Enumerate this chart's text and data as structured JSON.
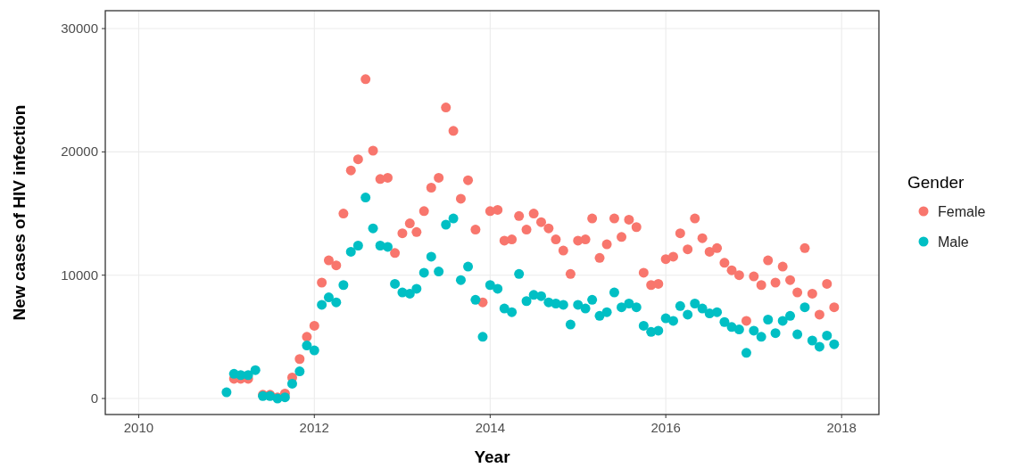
{
  "chart_data": {
    "type": "scatter",
    "xlabel": "Year",
    "ylabel": "New cases of HIV infection",
    "legend_title": "Gender",
    "x": [
      "2011-01",
      "2011-02",
      "2011-03",
      "2011-04",
      "2011-05",
      "2011-06",
      "2011-07",
      "2011-08",
      "2011-09",
      "2011-10",
      "2011-11",
      "2011-12",
      "2012-01",
      "2012-02",
      "2012-03",
      "2012-04",
      "2012-05",
      "2012-06",
      "2012-07",
      "2012-08",
      "2012-09",
      "2012-10",
      "2012-11",
      "2012-12",
      "2013-01",
      "2013-02",
      "2013-03",
      "2013-04",
      "2013-05",
      "2013-06",
      "2013-07",
      "2013-08",
      "2013-09",
      "2013-10",
      "2013-11",
      "2013-12",
      "2014-01",
      "2014-02",
      "2014-03",
      "2014-04",
      "2014-05",
      "2014-06",
      "2014-07",
      "2014-08",
      "2014-09",
      "2014-10",
      "2014-11",
      "2014-12",
      "2015-01",
      "2015-02",
      "2015-03",
      "2015-04",
      "2015-05",
      "2015-06",
      "2015-07",
      "2015-08",
      "2015-09",
      "2015-10",
      "2015-11",
      "2015-12",
      "2016-01",
      "2016-02",
      "2016-03",
      "2016-04",
      "2016-05",
      "2016-06",
      "2016-07",
      "2016-08",
      "2016-09",
      "2016-10",
      "2016-11",
      "2016-12",
      "2017-01",
      "2017-02",
      "2017-03",
      "2017-04",
      "2017-05",
      "2017-06",
      "2017-07",
      "2017-08",
      "2017-09",
      "2017-10",
      "2017-11",
      "2017-12"
    ],
    "series": [
      {
        "name": "Female",
        "color": "#f8766d",
        "values": [
          null,
          1600,
          1600,
          1600,
          null,
          300,
          300,
          100,
          400,
          1700,
          3200,
          5000,
          5900,
          9400,
          11200,
          10800,
          15000,
          18500,
          19400,
          25900,
          20100,
          17800,
          17900,
          11800,
          13400,
          14200,
          13500,
          15200,
          17100,
          17900,
          23600,
          21700,
          16200,
          17700,
          13700,
          7800,
          15200,
          15300,
          12800,
          12900,
          14800,
          13700,
          15000,
          14300,
          13800,
          12900,
          12000,
          10100,
          12800,
          12900,
          14600,
          11400,
          12500,
          14600,
          13100,
          14500,
          13900,
          10200,
          9200,
          9300,
          11300,
          11500,
          13400,
          12100,
          14600,
          13000,
          11900,
          12200,
          11000,
          10400,
          10000,
          6300,
          9900,
          9200,
          11200,
          9400,
          10700,
          9600,
          8600,
          12200,
          8500,
          6800,
          9300,
          7400
        ]
      },
      {
        "name": "Male",
        "color": "#00bfc4",
        "values": [
          500,
          2000,
          1900,
          1900,
          2300,
          200,
          200,
          0,
          100,
          1200,
          2200,
          4300,
          3900,
          7600,
          8200,
          7800,
          9200,
          11900,
          12400,
          16300,
          13800,
          12400,
          12300,
          9300,
          8600,
          8500,
          8900,
          10200,
          11500,
          10300,
          14100,
          14600,
          9600,
          10700,
          8000,
          5000,
          9200,
          8900,
          7300,
          7000,
          10100,
          7900,
          8400,
          8300,
          7800,
          7700,
          7600,
          6000,
          7600,
          7300,
          8000,
          6700,
          7000,
          8600,
          7400,
          7700,
          7400,
          5900,
          5400,
          5500,
          6500,
          6300,
          7500,
          6800,
          7700,
          7300,
          6900,
          7000,
          6200,
          5800,
          5600,
          3700,
          5500,
          5000,
          6400,
          5300,
          6300,
          6700,
          5200,
          7400,
          4700,
          4200,
          5100,
          4400
        ]
      }
    ],
    "xlim": [
      "2009-08-15",
      "2018-06-05"
    ],
    "xticks": [
      "2010",
      "2012",
      "2014",
      "2016",
      "2018"
    ],
    "ylim": [
      -1300,
      31450
    ],
    "yticks": [
      0,
      10000,
      20000,
      30000
    ],
    "grid": true,
    "legend": "right",
    "marker": "circle"
  }
}
